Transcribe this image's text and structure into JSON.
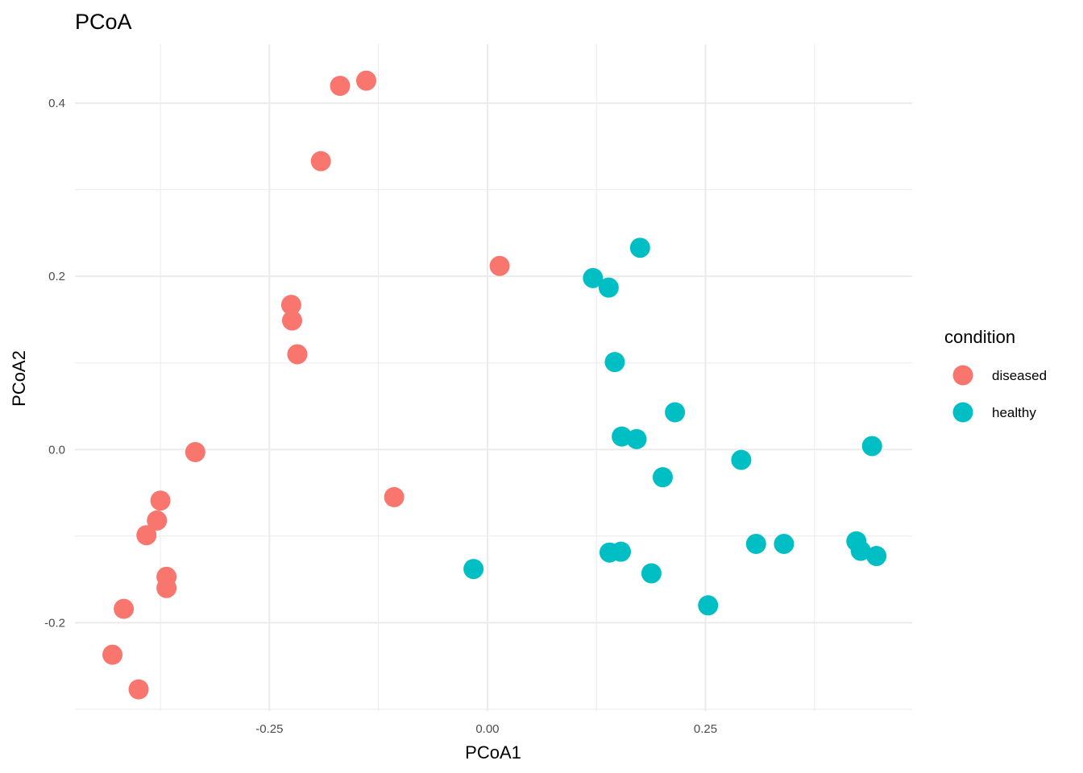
{
  "chart_data": {
    "type": "scatter",
    "title": "PCoA",
    "xlabel": "PCoA1",
    "ylabel": "PCoA2",
    "xlim": [
      -0.473,
      0.487
    ],
    "ylim": [
      -0.302,
      0.468
    ],
    "x_ticks": [
      {
        "value": -0.25,
        "label": "-0.25"
      },
      {
        "value": 0.0,
        "label": "0.00"
      },
      {
        "value": 0.25,
        "label": "0.25"
      }
    ],
    "x_minor_ticks": [
      -0.375,
      -0.125,
      0.125,
      0.375
    ],
    "y_ticks": [
      {
        "value": -0.2,
        "label": "-0.2"
      },
      {
        "value": 0.0,
        "label": "0.0"
      },
      {
        "value": 0.2,
        "label": "0.2"
      },
      {
        "value": 0.4,
        "label": "0.4"
      }
    ],
    "y_minor_ticks": [
      -0.3,
      -0.1,
      0.1,
      0.3
    ],
    "grid": true,
    "legend": {
      "title": "condition",
      "placement": "right"
    },
    "series": [
      {
        "name": "diseased",
        "color": "#F8766D",
        "points": [
          [
            -0.169,
            0.42
          ],
          [
            -0.139,
            0.426
          ],
          [
            -0.191,
            0.333
          ],
          [
            0.014,
            0.212
          ],
          [
            -0.225,
            0.167
          ],
          [
            -0.224,
            0.149
          ],
          [
            -0.218,
            0.11
          ],
          [
            -0.335,
            -0.003
          ],
          [
            -0.107,
            -0.055
          ],
          [
            -0.375,
            -0.059
          ],
          [
            -0.379,
            -0.082
          ],
          [
            -0.391,
            -0.099
          ],
          [
            -0.368,
            -0.147
          ],
          [
            -0.368,
            -0.16
          ],
          [
            -0.417,
            -0.184
          ],
          [
            -0.43,
            -0.237
          ],
          [
            -0.4,
            -0.277
          ]
        ]
      },
      {
        "name": "healthy",
        "color": "#00BFC4",
        "points": [
          [
            0.175,
            0.233
          ],
          [
            0.121,
            0.198
          ],
          [
            0.139,
            0.187
          ],
          [
            0.146,
            0.101
          ],
          [
            0.215,
            0.043
          ],
          [
            0.154,
            0.015
          ],
          [
            0.171,
            0.012
          ],
          [
            0.201,
            -0.032
          ],
          [
            0.291,
            -0.012
          ],
          [
            0.441,
            0.004
          ],
          [
            0.308,
            -0.109
          ],
          [
            0.34,
            -0.109
          ],
          [
            0.423,
            -0.106
          ],
          [
            0.428,
            -0.117
          ],
          [
            0.446,
            -0.123
          ],
          [
            0.14,
            -0.119
          ],
          [
            0.153,
            -0.118
          ],
          [
            0.188,
            -0.143
          ],
          [
            0.253,
            -0.18
          ],
          [
            -0.016,
            -0.138
          ]
        ]
      }
    ]
  }
}
